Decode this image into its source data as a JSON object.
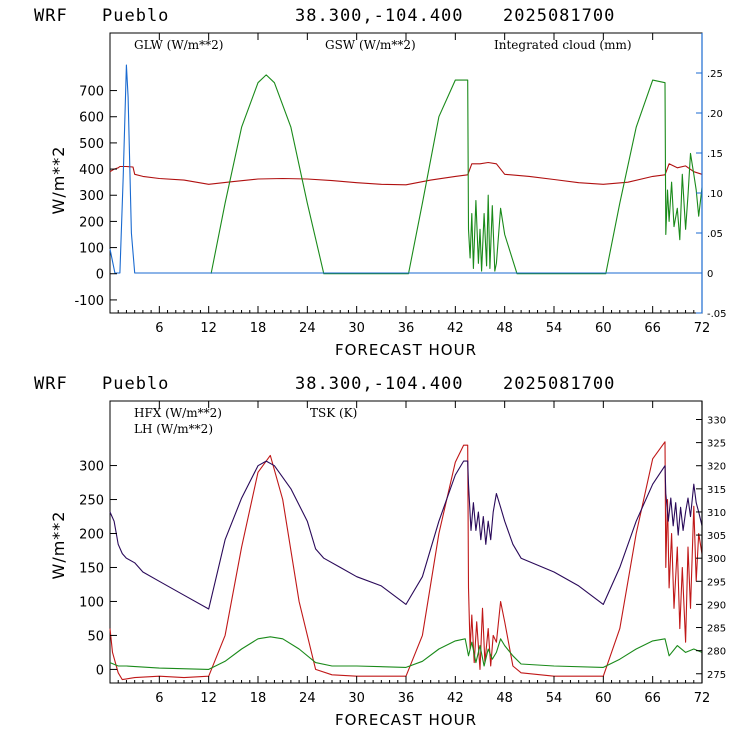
{
  "header": {
    "model": "WRF",
    "station": "Pueblo",
    "coords": "38.300,-104.400",
    "date": "2025081700"
  },
  "colors": {
    "glw": "#b01010",
    "gsw": "#1a8a1a",
    "cloud": "#1a6ad0",
    "hfx": "#c01818",
    "lh": "#1a8a1a",
    "tsk": "#2a0a5a"
  },
  "chart_data": [
    {
      "type": "line",
      "xlabel": "FORECAST HOUR",
      "ylabel": "W/m**2",
      "xlim": [
        0,
        72
      ],
      "ylim": [
        -150,
        920
      ],
      "x_ticks": [
        6,
        12,
        18,
        24,
        30,
        36,
        42,
        48,
        54,
        60,
        66,
        72
      ],
      "y_ticks": [
        -100,
        0,
        100,
        200,
        300,
        400,
        500,
        600,
        700
      ],
      "y2lim": [
        -0.05,
        0.3
      ],
      "y2_ticks": [
        -0.05,
        0,
        0.05,
        0.1,
        0.15,
        0.2,
        0.25
      ],
      "y2_tick_labels": [
        "-.05",
        "0",
        ".05",
        ".10",
        ".15",
        ".20",
        ".25"
      ],
      "legend": [
        "GLW (W/m**2)",
        "GSW (W/m**2)",
        "Integrated cloud (mm)"
      ],
      "series": [
        {
          "name": "GLW (W/m**2)",
          "axis": "left",
          "x": [
            0,
            0.5,
            1,
            1.2,
            2,
            2.8,
            3,
            4,
            6,
            9,
            12,
            15,
            18,
            21,
            24,
            27,
            30,
            33,
            36,
            39,
            42,
            43.5,
            44,
            45,
            46,
            47,
            48,
            51,
            54,
            57,
            60,
            63,
            66,
            67.5,
            68,
            69,
            70,
            71,
            72
          ],
          "values": [
            390,
            400,
            405,
            410,
            410,
            408,
            380,
            372,
            364,
            358,
            342,
            352,
            362,
            364,
            362,
            356,
            348,
            342,
            340,
            358,
            372,
            378,
            420,
            420,
            425,
            420,
            380,
            372,
            360,
            348,
            342,
            350,
            372,
            378,
            420,
            405,
            412,
            390,
            380
          ]
        },
        {
          "name": "GSW (W/m**2)",
          "axis": "left",
          "x": [
            12.3,
            14,
            16,
            18,
            19,
            20,
            22,
            24,
            26,
            36.3,
            38,
            40,
            42,
            43.1,
            43.5,
            43.6,
            43.8,
            44,
            44.2,
            44.5,
            44.8,
            45,
            45.2,
            45.5,
            45.8,
            46,
            46.2,
            46.5,
            46.8,
            47,
            47.5,
            48,
            49.5,
            60.3,
            62,
            64,
            66,
            67.5,
            67.6,
            67.8,
            68,
            68.3,
            68.6,
            69,
            69.3,
            69.6,
            70,
            70.3,
            70.6,
            71,
            71.3,
            71.6,
            72
          ],
          "values": [
            0,
            270,
            560,
            730,
            760,
            730,
            560,
            270,
            0,
            0,
            270,
            600,
            740,
            740,
            740,
            170,
            60,
            230,
            20,
            280,
            40,
            170,
            10,
            230,
            30,
            300,
            20,
            260,
            10,
            40,
            250,
            150,
            0,
            0,
            270,
            560,
            740,
            730,
            150,
            320,
            200,
            350,
            180,
            250,
            130,
            380,
            170,
            300,
            460,
            380,
            320,
            220,
            330
          ]
        },
        {
          "name": "Integrated cloud (mm)",
          "axis": "right",
          "x": [
            0,
            0.6,
            1.2,
            1.6,
            2.0,
            2.2,
            2.6,
            3,
            4,
            72
          ],
          "values": [
            0.03,
            0.0,
            0.0,
            0.12,
            0.26,
            0.22,
            0.05,
            0.0,
            0.0,
            0.0
          ]
        }
      ]
    },
    {
      "type": "line",
      "xlabel": "FORECAST HOUR",
      "ylabel": "W/m**2",
      "xlim": [
        0,
        72
      ],
      "ylim": [
        -20,
        395
      ],
      "x_ticks": [
        6,
        12,
        18,
        24,
        30,
        36,
        42,
        48,
        54,
        60,
        66,
        72
      ],
      "y_ticks": [
        0,
        50,
        100,
        150,
        200,
        250,
        300
      ],
      "y2lim": [
        273,
        334
      ],
      "y2_ticks": [
        275,
        280,
        285,
        290,
        295,
        300,
        305,
        310,
        315,
        320,
        325,
        330
      ],
      "y2_tick_labels": [
        "275",
        "280",
        "285",
        "290",
        "295",
        "300",
        "305",
        "310",
        "315",
        "320",
        "325",
        "330"
      ],
      "legend": [
        "HFX (W/m**2)",
        "LH (W/m**2)",
        "TSK (K)"
      ],
      "series": [
        {
          "name": "HFX (W/m**2)",
          "axis": "left",
          "x": [
            0,
            0.3,
            1,
            1.5,
            3,
            6,
            9,
            12,
            14,
            16,
            18,
            19.5,
            21,
            23,
            25,
            27,
            30,
            33,
            36,
            38,
            40,
            42,
            43,
            43.5,
            43.6,
            43.8,
            44,
            44.3,
            44.6,
            45,
            45.3,
            45.6,
            46,
            46.3,
            46.6,
            47,
            47.5,
            48,
            49,
            50,
            54,
            57,
            60,
            62,
            64,
            66,
            67.5,
            67.6,
            67.8,
            68,
            68.3,
            68.6,
            69,
            69.3,
            69.6,
            70,
            70.3,
            70.6,
            71,
            71.3,
            71.6,
            72
          ],
          "values": [
            60,
            25,
            -5,
            -15,
            -12,
            -10,
            -12,
            -10,
            50,
            180,
            290,
            315,
            250,
            100,
            0,
            -8,
            -10,
            -10,
            -10,
            50,
            200,
            305,
            330,
            330,
            120,
            30,
            80,
            10,
            70,
            0,
            90,
            10,
            60,
            5,
            50,
            40,
            100,
            70,
            5,
            -5,
            -10,
            -10,
            -10,
            60,
            200,
            310,
            335,
            150,
            250,
            120,
            200,
            90,
            180,
            60,
            150,
            40,
            180,
            90,
            240,
            130,
            200,
            170
          ]
        },
        {
          "name": "LH (W/m**2)",
          "axis": "left",
          "x": [
            0,
            1,
            2,
            6,
            12,
            14,
            16,
            18,
            19.5,
            21,
            23,
            25,
            27,
            30,
            36,
            38,
            40,
            42,
            43.2,
            43.6,
            44,
            44.5,
            45,
            45.5,
            46,
            46.5,
            47,
            47.5,
            48,
            49,
            50,
            54,
            60,
            62,
            64,
            66,
            67.5,
            68,
            69,
            70,
            71,
            72
          ],
          "values": [
            10,
            5,
            5,
            2,
            0,
            12,
            30,
            45,
            48,
            45,
            30,
            10,
            5,
            5,
            3,
            12,
            30,
            42,
            45,
            20,
            40,
            10,
            35,
            5,
            30,
            15,
            25,
            45,
            35,
            20,
            8,
            5,
            3,
            15,
            30,
            42,
            45,
            20,
            35,
            25,
            30,
            25
          ]
        },
        {
          "name": "TSK (K)",
          "axis": "right",
          "x": [
            0,
            0.5,
            1,
            1.5,
            2,
            3,
            4,
            6,
            9,
            12,
            14,
            16,
            18,
            19,
            20,
            22,
            24,
            25,
            26,
            28,
            30,
            33,
            36,
            38,
            40,
            42,
            43,
            43.5,
            43.6,
            43.9,
            44.2,
            44.5,
            44.8,
            45.1,
            45.4,
            45.7,
            46,
            46.3,
            46.6,
            47,
            47.5,
            48,
            49,
            50,
            54,
            57,
            60,
            62,
            64,
            66,
            67.5,
            67.6,
            67.9,
            68.2,
            68.5,
            68.8,
            69.1,
            69.4,
            69.7,
            70,
            70.3,
            70.6,
            71,
            71.3,
            71.6,
            72
          ],
          "values": [
            310,
            308,
            303,
            301,
            300,
            299,
            297,
            295,
            292,
            289,
            304,
            313,
            320,
            321,
            320,
            315,
            308,
            302,
            300,
            298,
            296,
            294,
            290,
            296,
            308,
            318,
            321,
            321,
            316,
            306,
            312,
            306,
            310,
            304,
            309,
            303,
            308,
            304,
            310,
            314,
            311,
            308,
            303,
            300,
            297,
            294,
            290,
            298,
            308,
            316,
            320,
            314,
            308,
            313,
            307,
            312,
            305,
            311,
            306,
            310,
            313,
            309,
            316,
            312,
            310,
            307
          ]
        }
      ]
    }
  ]
}
